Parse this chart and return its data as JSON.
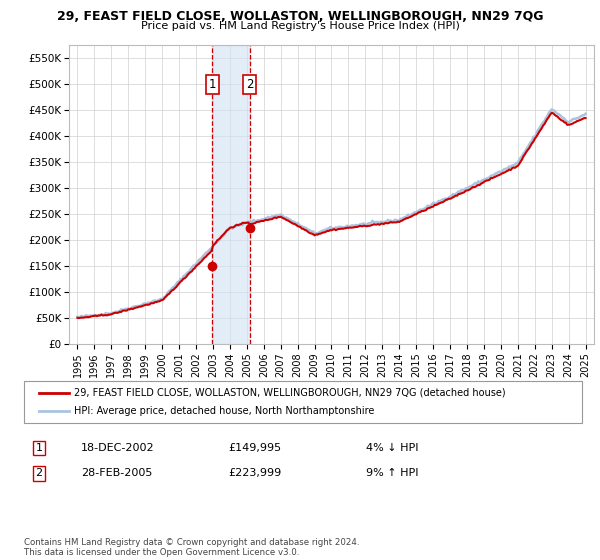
{
  "title": "29, FEAST FIELD CLOSE, WOLLASTON, WELLINGBOROUGH, NN29 7QG",
  "subtitle": "Price paid vs. HM Land Registry's House Price Index (HPI)",
  "sale1_date": "18-DEC-2002",
  "sale1_price": 149995,
  "sale1_label": "1",
  "sale1_hpi": "4% ↓ HPI",
  "sale2_date": "28-FEB-2005",
  "sale2_price": 223999,
  "sale2_label": "2",
  "sale2_hpi": "9% ↑ HPI",
  "legend_line1": "29, FEAST FIELD CLOSE, WOLLASTON, WELLINGBOROUGH, NN29 7QG (detached house)",
  "legend_line2": "HPI: Average price, detached house, North Northamptonshire",
  "footer": "Contains HM Land Registry data © Crown copyright and database right 2024.\nThis data is licensed under the Open Government Licence v3.0.",
  "sale1_x": 2002.96,
  "sale2_x": 2005.16,
  "price_line_color": "#cc0000",
  "hpi_line_color": "#aac4e0",
  "sale_marker_color": "#cc0000",
  "shade_color": "#cfe2f3",
  "vline_color": "#cc0000",
  "box_color": "#cc0000",
  "ylim_min": 0,
  "ylim_max": 575000,
  "xlim_min": 1994.5,
  "xlim_max": 2025.5,
  "yticks": [
    0,
    50000,
    100000,
    150000,
    200000,
    250000,
    300000,
    350000,
    400000,
    450000,
    500000,
    550000
  ],
  "ytick_labels": [
    "£0",
    "£50K",
    "£100K",
    "£150K",
    "£200K",
    "£250K",
    "£300K",
    "£350K",
    "£400K",
    "£450K",
    "£500K",
    "£550K"
  ],
  "xticks": [
    1995,
    1996,
    1997,
    1998,
    1999,
    2000,
    2001,
    2002,
    2003,
    2004,
    2005,
    2006,
    2007,
    2008,
    2009,
    2010,
    2011,
    2012,
    2013,
    2014,
    2015,
    2016,
    2017,
    2018,
    2019,
    2020,
    2021,
    2022,
    2023,
    2024,
    2025
  ]
}
